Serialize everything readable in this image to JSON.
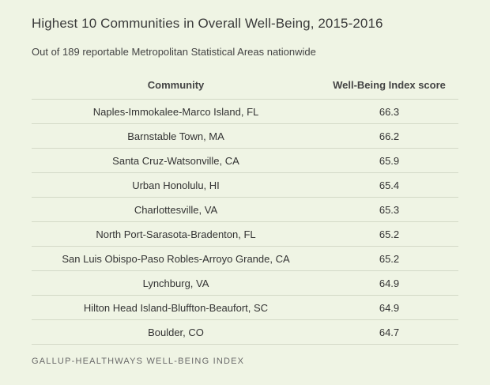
{
  "title": "Highest 10 Communities in Overall Well-Being, 2015-2016",
  "subtitle": "Out of 189 reportable Metropolitan Statistical Areas nationwide",
  "table": {
    "headers": [
      "Community",
      "Well-Being Index score"
    ],
    "rows": [
      [
        "Naples-Immokalee-Marco Island, FL",
        "66.3"
      ],
      [
        "Barnstable Town, MA",
        "66.2"
      ],
      [
        "Santa Cruz-Watsonville, CA",
        "65.9"
      ],
      [
        "Urban Honolulu, HI",
        "65.4"
      ],
      [
        "Charlottesville, VA",
        "65.3"
      ],
      [
        "North Port-Sarasota-Bradenton, FL",
        "65.2"
      ],
      [
        "San Luis Obispo-Paso Robles-Arroyo Grande, CA",
        "65.2"
      ],
      [
        "Lynchburg, VA",
        "64.9"
      ],
      [
        "Hilton Head Island-Bluffton-Beaufort, SC",
        "64.9"
      ],
      [
        "Boulder, CO",
        "64.7"
      ]
    ]
  },
  "source": "GALLUP-HEALTHWAYS WELL-BEING INDEX",
  "colors": {
    "background": "#eff4e4",
    "divider": "#d3d9c7",
    "text": "#333333"
  }
}
